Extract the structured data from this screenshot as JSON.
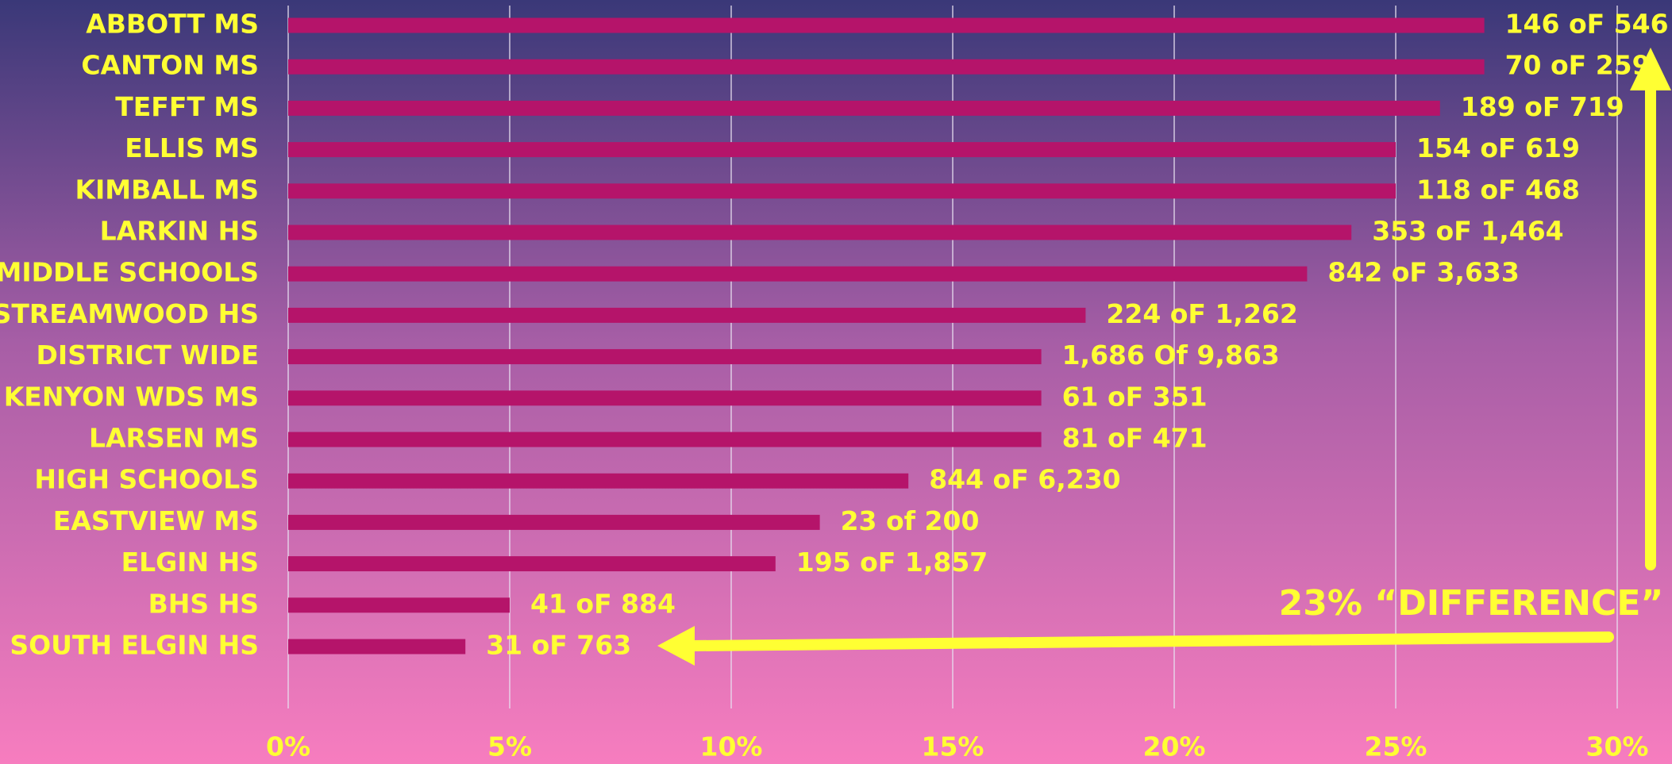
{
  "chart_data": {
    "type": "barh",
    "categories": [
      "ABBOTT MS",
      "CANTON MS",
      "TEFFT MS",
      "ELLIS MS",
      "KIMBALL MS",
      "LARKIN HS",
      "MIDDLE SCHOOLS",
      "STREAMWOOD HS",
      "DISTRICT WIDE",
      "KENYON WDS MS",
      "LARSEN MS",
      "HIGH SCHOOLS",
      "EASTVIEW MS",
      "ELGIN HS",
      "BHS HS",
      "SOUTH ELGIN HS"
    ],
    "values": [
      27,
      27,
      26,
      25,
      25,
      24,
      23,
      18,
      17,
      17,
      17,
      14,
      12,
      11,
      5,
      4
    ],
    "count_labels": [
      "146 oF 546",
      "70 oF 259",
      "189 oF 719",
      "154 oF 619",
      "118 oF 468",
      "353 oF 1,464",
      "842 oF 3,633",
      "224 oF 1,262",
      "1,686 Of 9,863",
      "61 oF 351",
      "81 oF 471",
      "844 oF 6,230",
      "23 of 200",
      "195 oF 1,857",
      "41 oF 884",
      "31 oF 763"
    ],
    "color": "#b5146a",
    "xlim": [
      0,
      30
    ],
    "xticks": [
      {
        "value": 0,
        "label": "0%"
      },
      {
        "value": 5,
        "label": "5%"
      },
      {
        "value": 10,
        "label": "10%"
      },
      {
        "value": 15,
        "label": "15%"
      },
      {
        "value": 20,
        "label": "20%"
      },
      {
        "value": 25,
        "label": "25%"
      },
      {
        "value": 30,
        "label": "30%"
      }
    ],
    "grid": true,
    "annotation": "23% “DIFFERENCE”"
  }
}
